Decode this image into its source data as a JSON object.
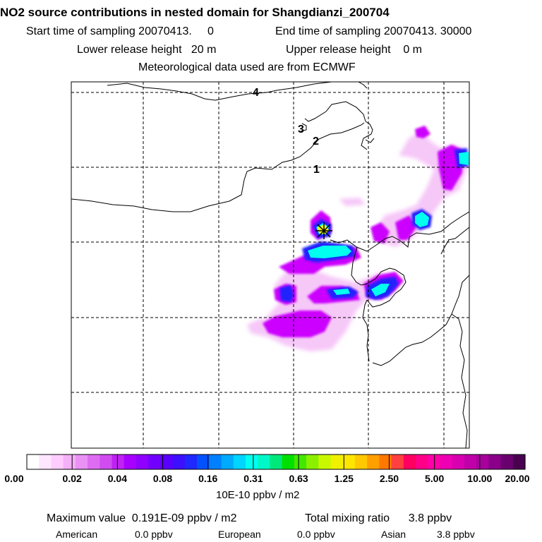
{
  "header": {
    "title": "NO2 source contributions in nested domain for Shangdianzi_200704",
    "start_time": "Start time of sampling 20070413.     0",
    "end_time": "End time of sampling 20070413. 30000",
    "lower_height": "Lower release height   20 m",
    "upper_height": "Upper release height    0 m",
    "met_data": "Meteorological data used are from ECMWF"
  },
  "map": {
    "labels": [
      "4",
      "3",
      "2",
      "1"
    ],
    "station_marker": "star-marker",
    "colors": {
      "coast": "#000000",
      "grid": "#000000",
      "pink_light": "#f6c8f8",
      "violet": "#cc00ff",
      "blue": "#2222ff",
      "cyan": "#00ffee",
      "yellow": "#ffff00"
    }
  },
  "colorbar": {
    "colors": [
      "#ffffff",
      "#ffe6ff",
      "#ffccff",
      "#f4b0f8",
      "#e991f5",
      "#dd6cf2",
      "#d04cf0",
      "#bf22f2",
      "#a800ff",
      "#8f00ff",
      "#7200ff",
      "#5a00ff",
      "#3c10ff",
      "#1e28ff",
      "#0052ff",
      "#0080ff",
      "#00aaff",
      "#00d4ff",
      "#00fff0",
      "#00f8c8",
      "#00e87a",
      "#00e000",
      "#42e800",
      "#8af000",
      "#c8f800",
      "#f0f000",
      "#ffe600",
      "#ffc800",
      "#ffa000",
      "#ff7800",
      "#ff4040",
      "#ff0060",
      "#ff0088",
      "#ff00a8",
      "#ee00b4",
      "#d800b0",
      "#c000a8",
      "#a8009c",
      "#8a0088",
      "#6a006e",
      "#4a0050"
    ],
    "tick_labels": [
      "0.00",
      "0.02",
      "0.04",
      "0.08",
      "0.16",
      "0.31",
      "0.63",
      "1.25",
      "2.50",
      "5.00",
      "10.00",
      "20.00"
    ],
    "unit": "10E-10 ppbv / m2"
  },
  "stats": {
    "max_value": "Maximum value  0.191E-09 ppbv / m2",
    "total_mixing": "Total mixing ratio      3.8 ppbv",
    "american_label": "American",
    "american_value": "0.0 ppbv",
    "european_label": "European",
    "european_value": "0.0 ppbv",
    "asian_label": "Asian",
    "asian_value": "3.8 ppbv"
  }
}
